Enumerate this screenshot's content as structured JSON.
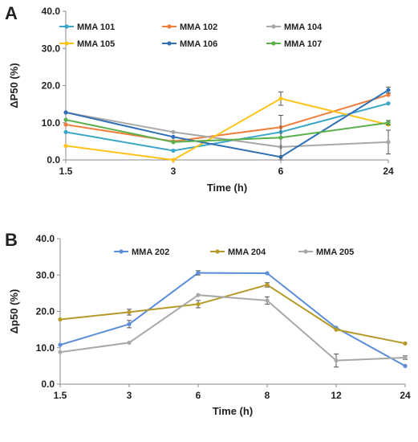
{
  "chart_data": [
    {
      "panel": "A",
      "type": "line",
      "categories": [
        "1.5",
        "3",
        "6",
        "24"
      ],
      "xlabel": "Time (h)",
      "ylabel": "ΔP50 (%)",
      "ylim": [
        0,
        40
      ],
      "yticks": [
        "0.0",
        "10.0",
        "20.0",
        "30.0",
        "40.0"
      ],
      "legend_position": "top",
      "legend_columns": 3,
      "series": [
        {
          "name": "MMA 101",
          "color": "#3aa6c8",
          "values": [
            7.5,
            2.5,
            7.5,
            15.2
          ],
          "errors": [
            0,
            0,
            0,
            0
          ]
        },
        {
          "name": "MMA 102",
          "color": "#f07d3a",
          "values": [
            9.5,
            5.0,
            8.8,
            17.5
          ],
          "errors": [
            0,
            0,
            0,
            0
          ]
        },
        {
          "name": "MMA 104",
          "color": "#a8a8a8",
          "values": [
            12.8,
            7.5,
            3.5,
            4.8
          ],
          "errors": [
            0,
            0,
            0,
            3.2
          ]
        },
        {
          "name": "MMA 105",
          "color": "#ffc21a",
          "values": [
            3.8,
            0.0,
            16.5,
            9.5
          ],
          "errors": [
            0,
            0,
            1.8,
            0
          ]
        },
        {
          "name": "MMA 106",
          "color": "#2e6fb5",
          "values": [
            12.8,
            6.2,
            0.8,
            18.8
          ],
          "errors": [
            0,
            0,
            0,
            0.8
          ]
        },
        {
          "name": "MMA 107",
          "color": "#5ab04a",
          "values": [
            10.8,
            4.8,
            6.0,
            10.0
          ],
          "errors": [
            0,
            0,
            6.0,
            0.6
          ]
        }
      ]
    },
    {
      "panel": "B",
      "type": "line",
      "categories": [
        "1.5",
        "3",
        "6",
        "8",
        "12",
        "24"
      ],
      "xlabel": "Time (h)",
      "ylabel": "Δp50 (%)",
      "ylim": [
        0,
        40
      ],
      "yticks": [
        "0.0",
        "10.0",
        "20.0",
        "30.0",
        "40.0"
      ],
      "legend_position": "top",
      "legend_columns": 3,
      "series": [
        {
          "name": "MMA 202",
          "color": "#5b8dd8",
          "values": [
            10.8,
            16.5,
            30.6,
            30.5,
            15.5,
            5.0
          ],
          "errors": [
            0,
            1.0,
            0.6,
            0,
            0,
            0
          ]
        },
        {
          "name": "MMA 204",
          "color": "#b59a27",
          "values": [
            17.8,
            19.8,
            22.0,
            27.3,
            15.0,
            11.2
          ],
          "errors": [
            0,
            0.8,
            1.0,
            0.6,
            0,
            0
          ]
        },
        {
          "name": "MMA 205",
          "color": "#a8a8a8",
          "values": [
            8.8,
            11.4,
            24.5,
            23.0,
            6.5,
            7.3
          ],
          "errors": [
            0,
            0,
            0,
            1.0,
            1.8,
            0.5
          ]
        }
      ]
    }
  ]
}
